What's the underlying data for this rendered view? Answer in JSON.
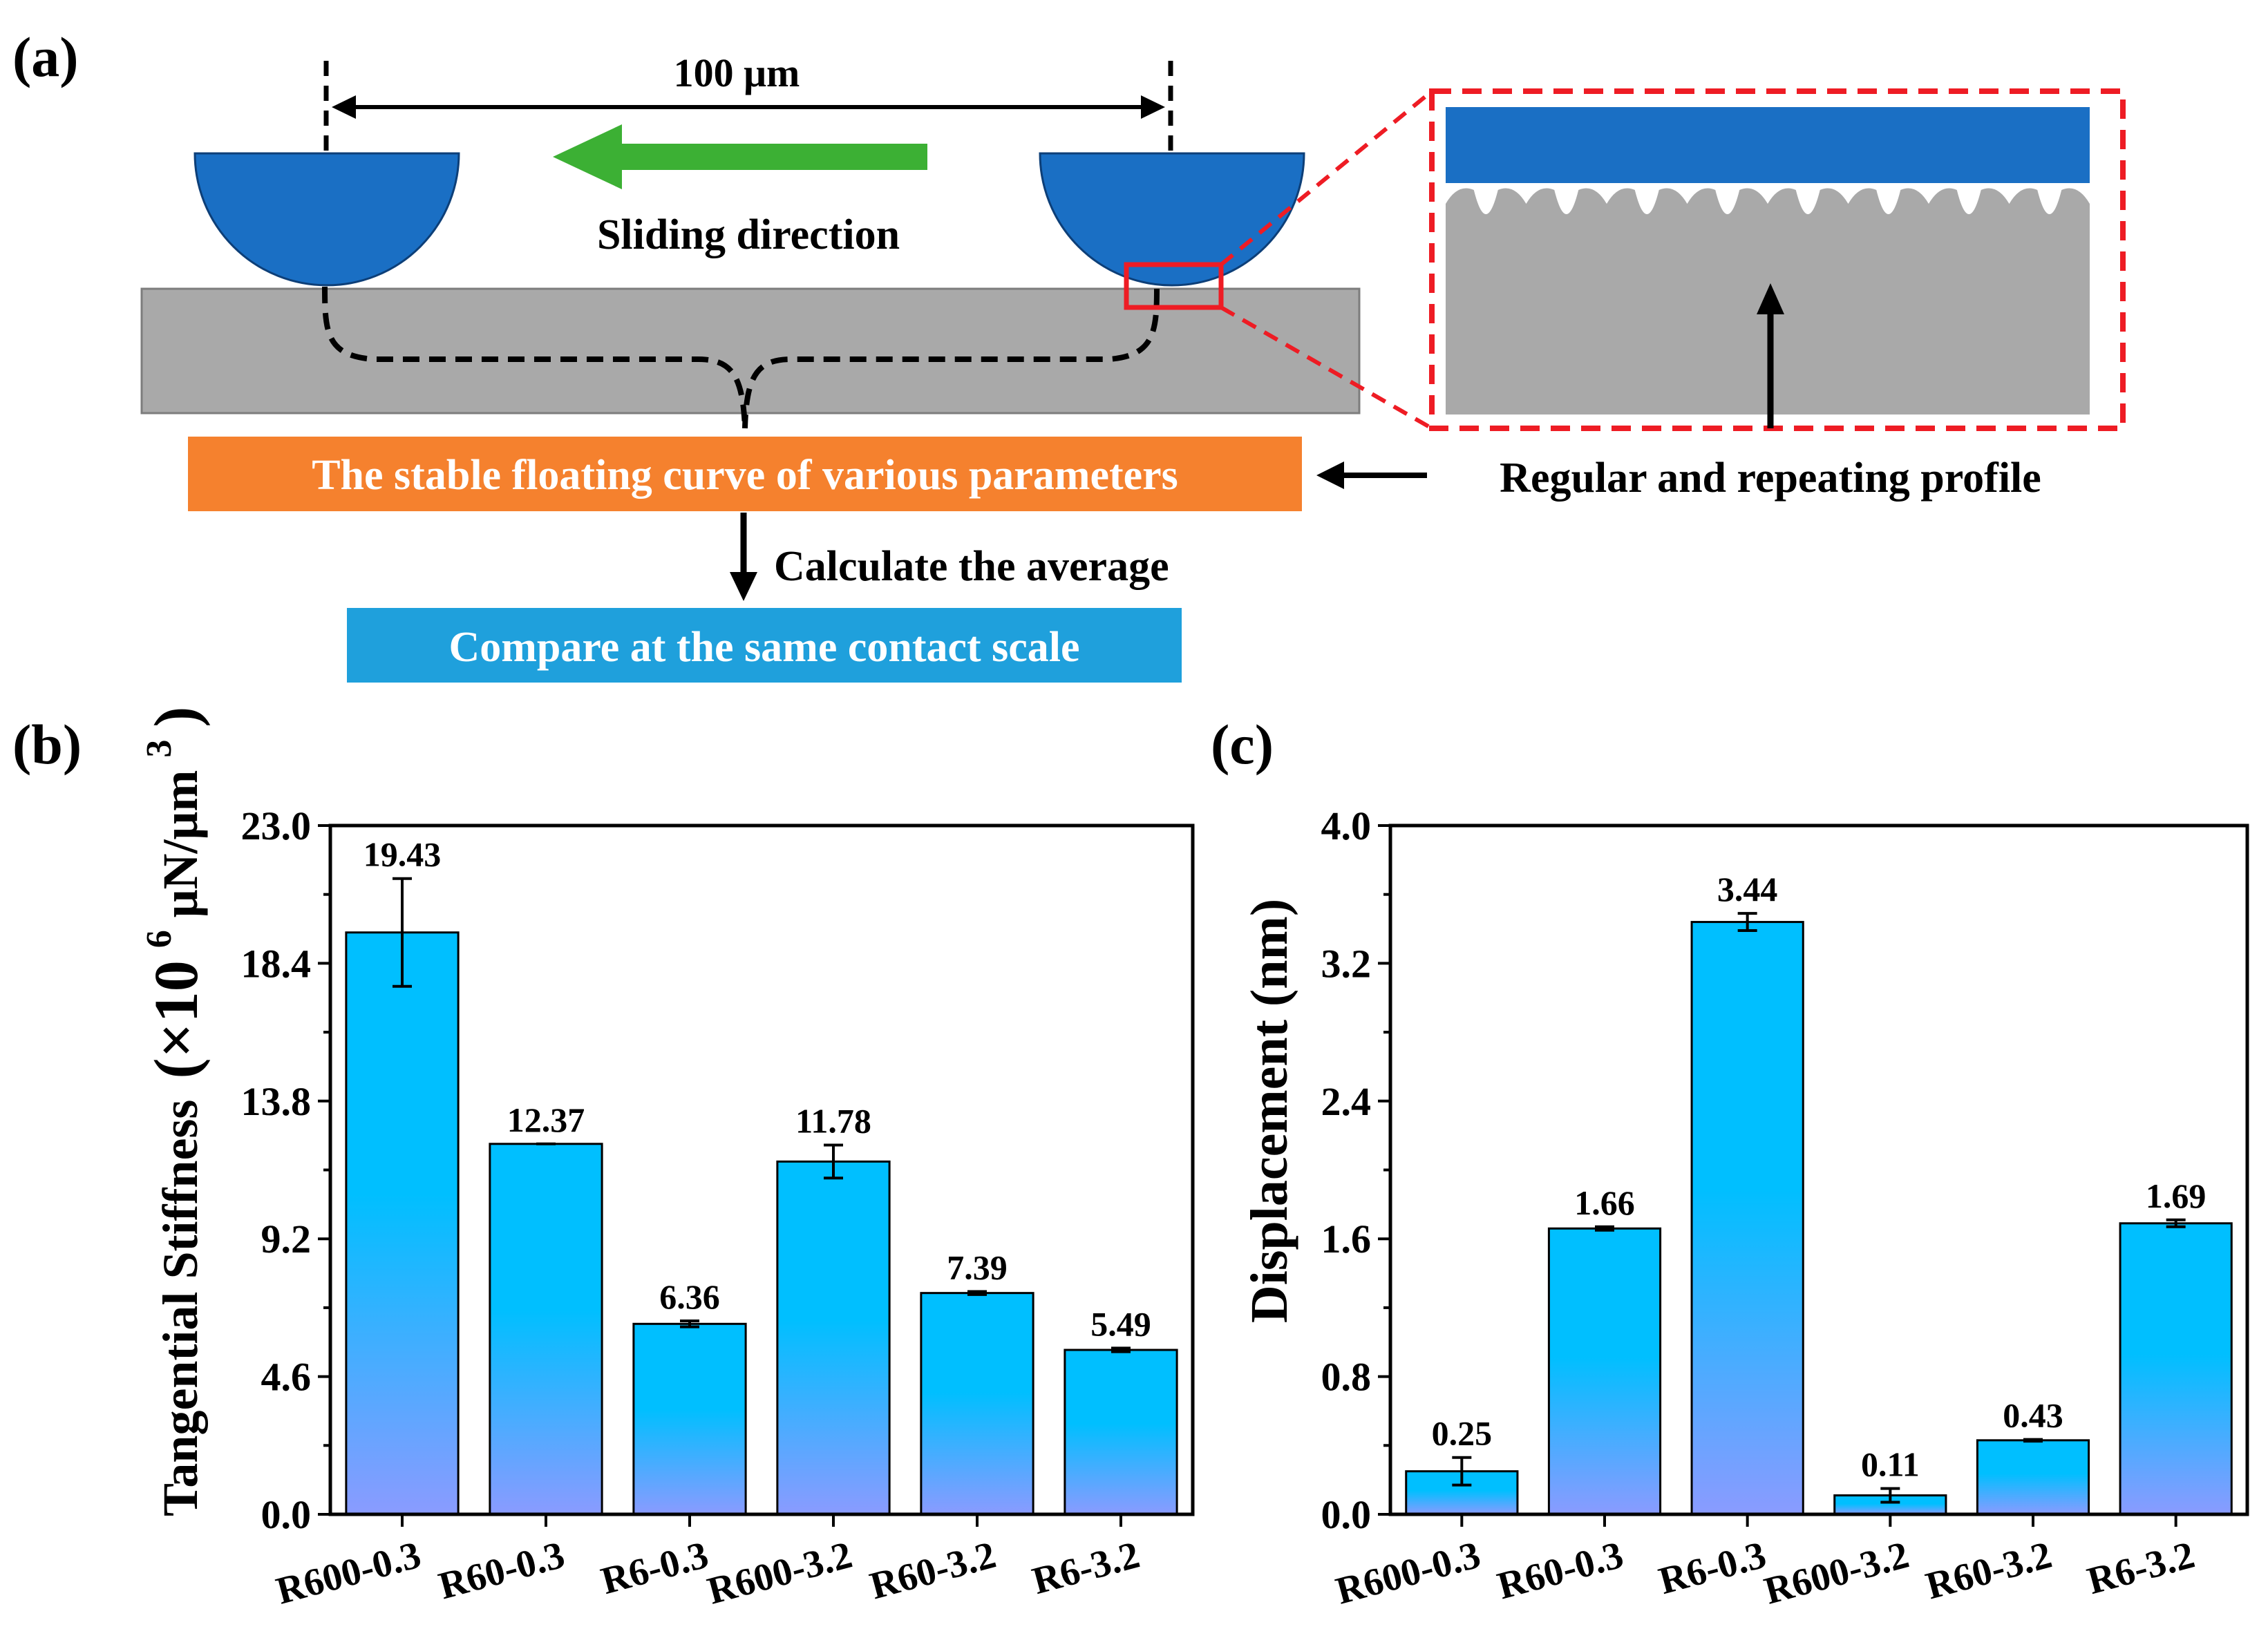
{
  "panel_a": {
    "label": "(a)",
    "distance_label": "100 μm",
    "sliding_label": "Sliding direction",
    "orange_box_text": "The stable floating curve of various parameters",
    "profile_label": "Regular and repeating profile",
    "calc_label": "Calculate the average",
    "blue_box_text": "Compare at the same contact scale",
    "colors": {
      "ball": "#1a6fc4",
      "substrate": "#a9a9a9",
      "arrow_green": "#3cb034",
      "orange_box": "#f5812e",
      "blue_box": "#1fa0dc",
      "zoom_dash": "#ee1c24"
    }
  },
  "chart_data": [
    {
      "panel_label": "(b)",
      "type": "bar",
      "categories": [
        "R600-0.3",
        "R60-0.3",
        "R6-0.3",
        "R600-3.2",
        "R60-3.2",
        "R6-3.2"
      ],
      "values": [
        19.43,
        12.37,
        6.36,
        11.78,
        7.39,
        5.49
      ],
      "error": [
        1.8,
        0.0,
        0.1,
        0.55,
        0.05,
        0.06
      ],
      "value_labels": [
        "19.43",
        "12.37",
        "6.36",
        "11.78",
        "7.39",
        "5.49"
      ],
      "ylabel_main": "Tangential Stiffness",
      "ylabel_unit_prefix": "(×10",
      "ylabel_unit_exp": "6",
      "ylabel_unit_mid": "μN/μm",
      "ylabel_unit_exp2": "3",
      "ylabel_unit_suffix": ")",
      "ylim": [
        0,
        23
      ],
      "yticks": [
        "0.0",
        "4.6",
        "9.2",
        "13.8",
        "18.4",
        "23.0"
      ],
      "ytick_values": [
        0,
        4.6,
        9.2,
        13.8,
        18.4,
        23.0
      ],
      "bar_gradient": [
        "#00bfff",
        "#8a9bff"
      ]
    },
    {
      "panel_label": "(c)",
      "type": "bar",
      "categories": [
        "R600-0.3",
        "R60-0.3",
        "R6-0.3",
        "R600-3.2",
        "R60-3.2",
        "R6-3.2"
      ],
      "values": [
        0.25,
        1.66,
        3.44,
        0.11,
        0.43,
        1.69
      ],
      "error": [
        0.08,
        0.01,
        0.05,
        0.04,
        0.005,
        0.02
      ],
      "value_labels": [
        "0.25",
        "1.66",
        "3.44",
        "0.11",
        "0.43",
        "1.69"
      ],
      "ylabel_main": "Displacement (nm)",
      "ylim": [
        0,
        4.0
      ],
      "yticks": [
        "0.0",
        "0.8",
        "1.6",
        "2.4",
        "3.2",
        "4.0"
      ],
      "ytick_values": [
        0,
        0.8,
        1.6,
        2.4,
        3.2,
        4.0
      ],
      "bar_gradient": [
        "#00bfff",
        "#8a9bff"
      ]
    }
  ]
}
